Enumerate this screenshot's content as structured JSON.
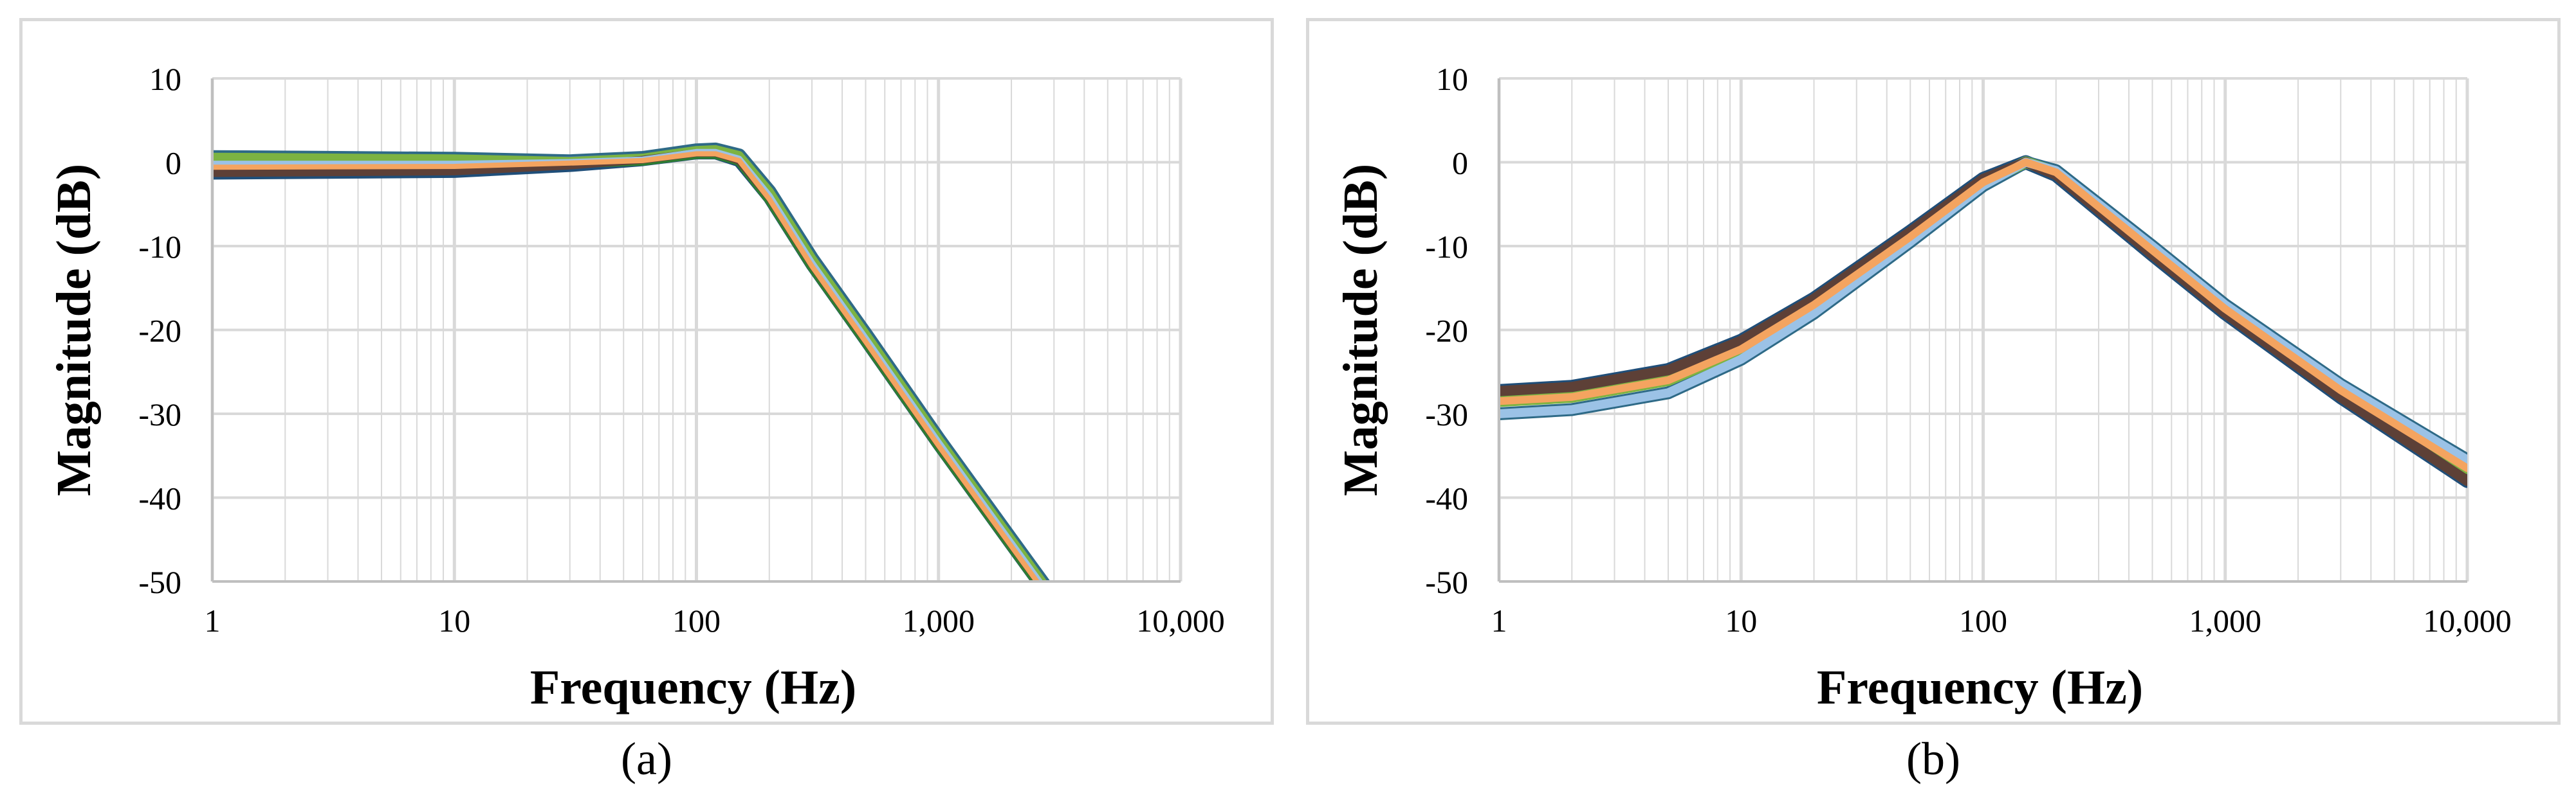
{
  "chart_data": [
    {
      "type": "line",
      "panel_label": "a",
      "xlabel": "Frequency (Hz)",
      "ylabel": "Magnitude (dB)",
      "xscale": "log",
      "xlim": [
        1,
        10000
      ],
      "ylim": [
        -50,
        10
      ],
      "xticks": [
        1,
        10,
        100,
        1000,
        10000
      ],
      "xtick_labels": [
        "1",
        "10",
        "100",
        "1,000",
        "10,000"
      ],
      "yticks": [
        10,
        0,
        -10,
        -20,
        -30,
        -40,
        -50
      ],
      "ytick_labels": [
        "10",
        "0",
        "-10",
        "-20",
        "-30",
        "-40",
        "-50"
      ],
      "grid": true,
      "legend": "none",
      "colors": {
        "grid": "#d9d9d9",
        "series": [
          "#2e6a87",
          "#1f4e79",
          "#4472c4",
          "#2e7d32",
          "#7cb342",
          "#5d4037",
          "#9bc2e6",
          "#f4a460"
        ]
      },
      "series": [
        {
          "x": [
            1,
            10,
            30,
            60,
            100,
            120,
            150,
            200,
            300,
            500,
            1000,
            2000,
            3000
          ],
          "y": [
            0.6,
            0.4,
            0.1,
            0.5,
            1.4,
            1.5,
            0.8,
            -3.5,
            -11.5,
            -20.5,
            -33,
            -45,
            -52
          ]
        },
        {
          "x": [
            1,
            10,
            30,
            60,
            100,
            120,
            150,
            200,
            300,
            500,
            1000,
            2000,
            3000
          ],
          "y": [
            -1.3,
            -1.1,
            -0.4,
            0.3,
            1.1,
            1.1,
            0.2,
            -4.2,
            -12.2,
            -21.2,
            -33.6,
            -45.6,
            -52.6
          ]
        },
        {
          "x": [
            1,
            10,
            30,
            60,
            100,
            120,
            150,
            200,
            300,
            500,
            1000,
            2000,
            3000
          ],
          "y": [
            -0.2,
            -0.2,
            0.0,
            0.3,
            1.2,
            1.2,
            0.4,
            -4.0,
            -12.0,
            -21.0,
            -33.4,
            -45.4,
            -52.4
          ]
        },
        {
          "x": [
            1,
            10,
            30,
            60,
            100,
            120,
            150,
            200,
            300,
            500,
            1000,
            2000,
            3000
          ],
          "y": [
            -0.6,
            -0.5,
            -0.1,
            0.2,
            1.0,
            1.0,
            0.2,
            -4.4,
            -12.4,
            -21.4,
            -33.8,
            -45.8,
            -52.8
          ]
        }
      ]
    },
    {
      "type": "line",
      "panel_label": "b",
      "xlabel": "Frequency (Hz)",
      "ylabel": "Magnitude (dB)",
      "xscale": "log",
      "xlim": [
        1,
        10000
      ],
      "ylim": [
        -50,
        10
      ],
      "xticks": [
        1,
        10,
        100,
        1000,
        10000
      ],
      "xtick_labels": [
        "1",
        "10",
        "100",
        "1,000",
        "10,000"
      ],
      "yticks": [
        10,
        0,
        -10,
        -20,
        -30,
        -40,
        -50
      ],
      "ytick_labels": [
        "10",
        "0",
        "-10",
        "-20",
        "-30",
        "-40",
        "-50"
      ],
      "grid": true,
      "legend": "none",
      "colors": {
        "grid": "#d9d9d9",
        "series": [
          "#1f4e79",
          "#2e6a87",
          "#7cb342",
          "#5d4037",
          "#9bc2e6",
          "#f4a460"
        ]
      },
      "series": [
        {
          "x": [
            1,
            2,
            5,
            10,
            20,
            50,
            100,
            150,
            200,
            500,
            1000,
            3000,
            10000
          ],
          "y": [
            -27.3,
            -26.8,
            -24.8,
            -21.3,
            -16.3,
            -8.3,
            -2.0,
            0.0,
            -1.5,
            -11.0,
            -18.0,
            -28.0,
            -38.0
          ]
        },
        {
          "x": [
            1,
            2,
            5,
            10,
            20,
            50,
            100,
            150,
            200,
            500,
            1000,
            3000,
            10000
          ],
          "y": [
            -30.0,
            -29.5,
            -27.5,
            -23.5,
            -18.0,
            -9.5,
            -2.8,
            0.0,
            -1.0,
            -10.0,
            -17.0,
            -26.5,
            -35.5
          ]
        },
        {
          "x": [
            1,
            2,
            5,
            10,
            20,
            50,
            100,
            150,
            200,
            500,
            1000,
            3000,
            10000
          ],
          "y": [
            -28.5,
            -28.0,
            -26.0,
            -22.3,
            -17.0,
            -8.9,
            -2.4,
            0.0,
            -1.2,
            -10.5,
            -17.5,
            -27.2,
            -36.5
          ]
        }
      ]
    }
  ],
  "captions": {
    "a": {
      "open": "(",
      "letter": "a",
      "close": ")"
    },
    "b": {
      "open": "(",
      "letter": "b",
      "close": ")"
    }
  }
}
